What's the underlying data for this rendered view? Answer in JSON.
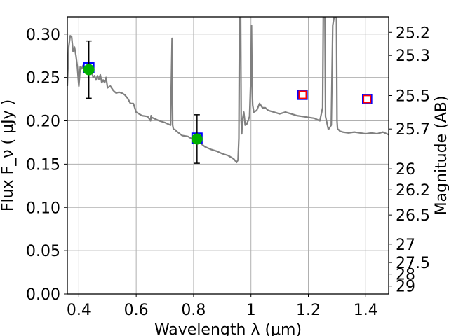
{
  "chart_data": {
    "type": "line",
    "xlabel": "Wavelength  λ (μm)",
    "ylabel": "Flux  F_ν  ( μJy )",
    "ylabel_right": "Magnitude (AB)",
    "xlim": [
      0.36,
      1.48
    ],
    "ylim": [
      0,
      0.32
    ],
    "grid": true,
    "x_ticks": [
      "0.4",
      "0.6",
      "0.8",
      "1",
      "1.2",
      "1.4"
    ],
    "x_tick_values": [
      0.4,
      0.6,
      0.8,
      1.0,
      1.2,
      1.4
    ],
    "y_ticks": [
      "0.00",
      "0.05",
      "0.10",
      "0.15",
      "0.20",
      "0.25",
      "0.30"
    ],
    "y_tick_values": [
      0,
      0.05,
      0.1,
      0.15,
      0.2,
      0.25,
      0.3
    ],
    "mag_ticks": [
      "25.2",
      "25.3",
      "25.5",
      "25.7",
      "26",
      "26.2",
      "26.5",
      "27",
      "27.5",
      "28",
      "29"
    ],
    "mag_tick_values": [
      25.2,
      25.3,
      25.5,
      25.7,
      26,
      26.2,
      26.5,
      27,
      27.5,
      28,
      29
    ],
    "series": [
      {
        "kind": "model_spectrum",
        "color": "#808080",
        "x": [
          0.36,
          0.365,
          0.37,
          0.375,
          0.38,
          0.385,
          0.39,
          0.395,
          0.4,
          0.405,
          0.41,
          0.415,
          0.42,
          0.425,
          0.43,
          0.435,
          0.44,
          0.445,
          0.45,
          0.455,
          0.46,
          0.465,
          0.47,
          0.475,
          0.48,
          0.485,
          0.49,
          0.495,
          0.5,
          0.51,
          0.52,
          0.53,
          0.54,
          0.55,
          0.56,
          0.57,
          0.58,
          0.59,
          0.6,
          0.62,
          0.64,
          0.65,
          0.652,
          0.654,
          0.66,
          0.68,
          0.7,
          0.72,
          0.725,
          0.727,
          0.73,
          0.735,
          0.74,
          0.76,
          0.78,
          0.8,
          0.82,
          0.84,
          0.86,
          0.88,
          0.9,
          0.92,
          0.94,
          0.95,
          0.955,
          0.958,
          0.96,
          0.962,
          0.964,
          0.966,
          0.968,
          0.97,
          0.975,
          0.98,
          0.985,
          0.99,
          0.995,
          1.0,
          1.002,
          1.004,
          1.006,
          1.01,
          1.02,
          1.03,
          1.04,
          1.05,
          1.06,
          1.08,
          1.1,
          1.12,
          1.14,
          1.16,
          1.18,
          1.2,
          1.22,
          1.24,
          1.25,
          1.252,
          1.254,
          1.256,
          1.258,
          1.26,
          1.27,
          1.28,
          1.285,
          1.29,
          1.295,
          1.298,
          1.3,
          1.302,
          1.305,
          1.31,
          1.32,
          1.34,
          1.36,
          1.38,
          1.4,
          1.42,
          1.44,
          1.46,
          1.48
        ],
        "y": [
          0.24,
          0.285,
          0.298,
          0.297,
          0.28,
          0.285,
          0.275,
          0.262,
          0.24,
          0.262,
          0.26,
          0.264,
          0.262,
          0.258,
          0.262,
          0.256,
          0.26,
          0.256,
          0.25,
          0.252,
          0.247,
          0.252,
          0.248,
          0.253,
          0.244,
          0.247,
          0.244,
          0.25,
          0.238,
          0.24,
          0.235,
          0.232,
          0.233,
          0.232,
          0.23,
          0.226,
          0.22,
          0.22,
          0.21,
          0.206,
          0.205,
          0.2,
          0.206,
          0.204,
          0.203,
          0.2,
          0.198,
          0.195,
          0.295,
          0.195,
          0.19,
          0.19,
          0.188,
          0.183,
          0.182,
          0.178,
          0.175,
          0.17,
          0.167,
          0.165,
          0.162,
          0.16,
          0.156,
          0.152,
          0.155,
          0.18,
          0.32,
          0.32,
          0.32,
          0.2,
          0.185,
          0.2,
          0.21,
          0.195,
          0.196,
          0.2,
          0.205,
          0.255,
          0.31,
          0.24,
          0.218,
          0.21,
          0.212,
          0.22,
          0.215,
          0.215,
          0.212,
          0.21,
          0.208,
          0.21,
          0.208,
          0.206,
          0.205,
          0.204,
          0.203,
          0.2,
          0.215,
          0.32,
          0.32,
          0.32,
          0.32,
          0.205,
          0.19,
          0.195,
          0.31,
          0.32,
          0.32,
          0.32,
          0.2,
          0.19,
          0.19,
          0.188,
          0.187,
          0.186,
          0.187,
          0.186,
          0.185,
          0.186,
          0.185,
          0.187,
          0.184
        ]
      },
      {
        "kind": "observed_photometry",
        "color": "#00b000",
        "x": [
          0.435,
          0.812
        ],
        "y": [
          0.259,
          0.179
        ],
        "yerr": [
          0.033,
          0.028
        ]
      },
      {
        "kind": "model_photometry",
        "color": "#0000ff",
        "x": [
          0.435,
          0.812
        ],
        "y": [
          0.261,
          0.18
        ]
      },
      {
        "kind": "model_photometry_no_data",
        "color": "#ff0000",
        "edge_color": "#0000ff",
        "x": [
          1.18,
          1.405
        ],
        "y": [
          0.23,
          0.225
        ]
      }
    ]
  }
}
